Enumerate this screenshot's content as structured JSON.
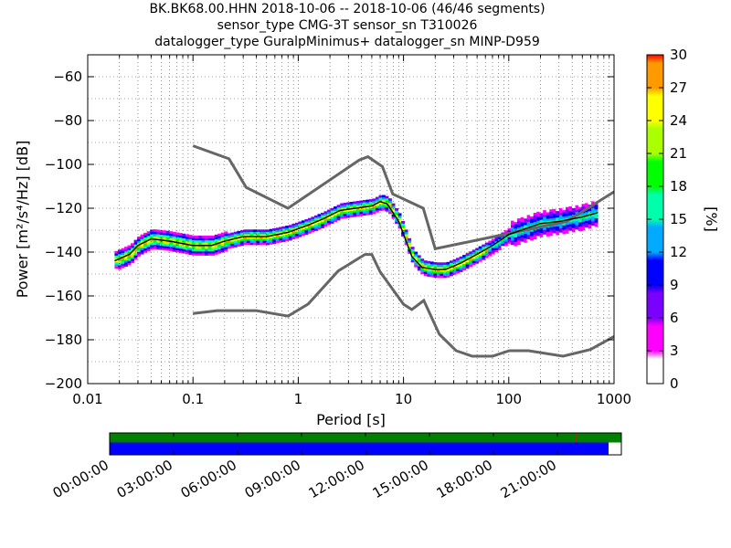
{
  "title": {
    "line1": "BK.BK68.00.HHN   2018-10-06 -- 2018-10-06  (46/46 segments)",
    "line2": "sensor_type CMG-3T sensor_sn T310026",
    "line3": "datalogger_type GuralpMinimus+ datalogger_sn MINP-D959"
  },
  "chart_data": [
    {
      "type": "heatmap",
      "subtype": "probabilistic power spectral density",
      "xlabel": "Period [s]",
      "ylabel": "Power [m²/s⁴/Hz] [dB]",
      "xscale": "log",
      "xlim": [
        0.01,
        1000
      ],
      "ylim": [
        -200,
        -50
      ],
      "x_ticks": [
        0.01,
        0.1,
        1,
        10,
        100,
        1000
      ],
      "x_tick_labels": [
        "0.01",
        "0.1",
        "1",
        "10",
        "100",
        "1000"
      ],
      "y_ticks": [
        -200,
        -180,
        -160,
        -140,
        -120,
        -100,
        -80,
        -60
      ],
      "y_tick_labels": [
        "−200",
        "−180",
        "−160",
        "−140",
        "−120",
        "−100",
        "−80",
        "−60"
      ],
      "grid": true,
      "colormap": "pqlx",
      "colorbar": {
        "label": "[%]",
        "range": [
          0,
          30
        ],
        "ticks": [
          0,
          3,
          6,
          9,
          12,
          15,
          18,
          21,
          24,
          27,
          30
        ],
        "tick_labels": [
          "0",
          "3",
          "6",
          "9",
          "12",
          "15",
          "18",
          "21",
          "24",
          "27",
          "30"
        ],
        "colors": [
          "#ffffff",
          "#ff00ff",
          "#7a00ff",
          "#0000ff",
          "#00aaff",
          "#00ffaa",
          "#00ff00",
          "#aaff00",
          "#ffff00",
          "#ff9900",
          "#ff0000"
        ]
      },
      "mode_curve": {
        "period": [
          0.018,
          0.025,
          0.03,
          0.04,
          0.06,
          0.1,
          0.15,
          0.2,
          0.3,
          0.5,
          0.8,
          1.2,
          1.7,
          2.5,
          3.5,
          5,
          6,
          7,
          9,
          12,
          15,
          20,
          25,
          35,
          50,
          70,
          100,
          150,
          200,
          300,
          500,
          700
        ],
        "power_db": [
          -144,
          -141,
          -137,
          -134,
          -135,
          -137,
          -137,
          -135,
          -133,
          -133,
          -131,
          -128,
          -125,
          -121,
          -120,
          -119,
          -117,
          -118,
          -126,
          -142,
          -147,
          -148,
          -148,
          -145,
          -141,
          -137,
          -132,
          -129,
          -127,
          -126,
          -124,
          -122
        ]
      },
      "noise_models": {
        "color": "#666666",
        "high": {
          "period": [
            0.1,
            0.22,
            0.32,
            0.8,
            3.8,
            4.6,
            6.3,
            7.9,
            15.4,
            20,
            354.8,
            1000
          ],
          "power_db": [
            -91.5,
            -97.4,
            -110.5,
            -120,
            -98,
            -96.5,
            -101,
            -113.5,
            -120,
            -138.5,
            -126,
            -112.5
          ]
        },
        "low": {
          "period": [
            0.1,
            0.17,
            0.4,
            0.8,
            1.24,
            2.4,
            4.3,
            5,
            6,
            10,
            12,
            15.6,
            21.9,
            31.6,
            45,
            70,
            101,
            154,
            328,
            600,
            1000
          ],
          "power_db": [
            -168,
            -166.7,
            -166.7,
            -169.2,
            -163.7,
            -148.6,
            -141.1,
            -141.1,
            -149,
            -163.8,
            -166.2,
            -162.1,
            -177.5,
            -185,
            -187.5,
            -187.5,
            -185,
            -185,
            -187.5,
            -184.4,
            -178.5
          ]
        }
      }
    },
    {
      "type": "timeline",
      "description": "data coverage bars",
      "x_tick_labels": [
        "00:00:00",
        "03:00:00",
        "06:00:00",
        "09:00:00",
        "12:00:00",
        "15:00:00",
        "18:00:00",
        "21:00:00"
      ],
      "hours_start": 0,
      "hours_end": 24,
      "upper_bar": {
        "color": "#008000",
        "coverage_hours": [
          [
            0,
            24
          ]
        ],
        "marker_hours": 21.9,
        "marker_color": "#ff0000"
      },
      "lower_bar": {
        "color": "#0000ff",
        "coverage_hours": [
          [
            0,
            23.4
          ]
        ]
      }
    }
  ]
}
